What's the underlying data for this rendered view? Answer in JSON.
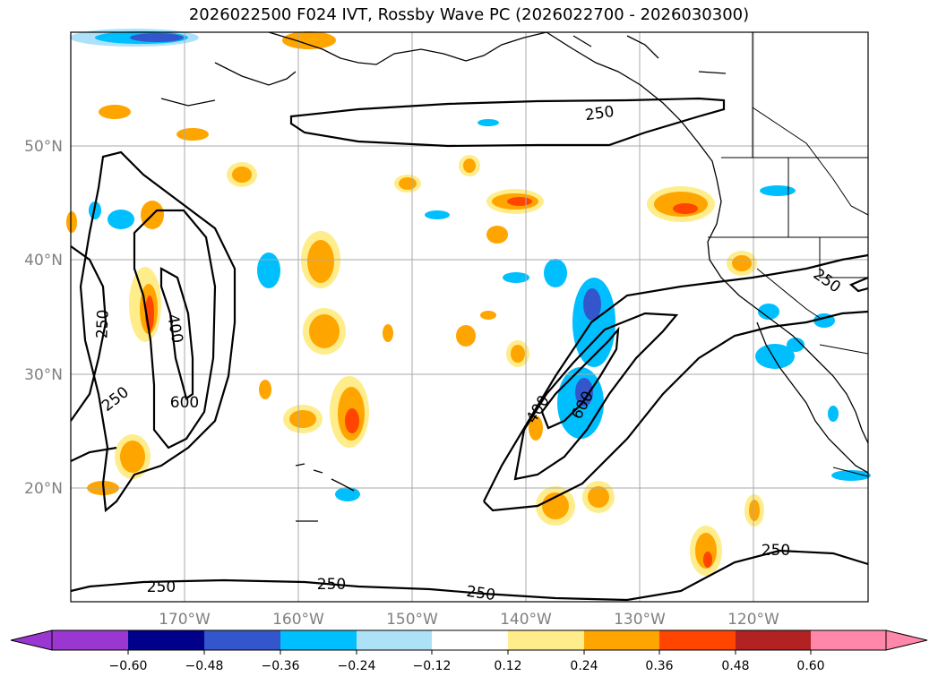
{
  "title": "2026022500 F024 IVT, Rossby Wave PC (2026022700 - 2026030300)",
  "map": {
    "lon_labels": [
      "170°W",
      "160°W",
      "150°W",
      "140°W",
      "130°W",
      "120°W"
    ],
    "lat_labels": [
      "50°N",
      "40°N",
      "30°N",
      "20°N"
    ],
    "contour_labels": [
      "250",
      "400",
      "600",
      "250",
      "600",
      "400",
      "250",
      "250",
      "250",
      "250",
      "250",
      "250"
    ]
  },
  "colorbar": {
    "ticks": [
      "−0.60",
      "−0.48",
      "−0.36",
      "−0.24",
      "−0.12",
      "0.12",
      "0.24",
      "0.36",
      "0.48",
      "0.60"
    ],
    "colors": [
      "#9a37d0",
      "#00008b",
      "#3356cc",
      "#00bfff",
      "#ade1f7",
      "#ffffff",
      "#ffec8b",
      "#ffa500",
      "#ff4500",
      "#b22222",
      "#ff88aa"
    ]
  }
}
